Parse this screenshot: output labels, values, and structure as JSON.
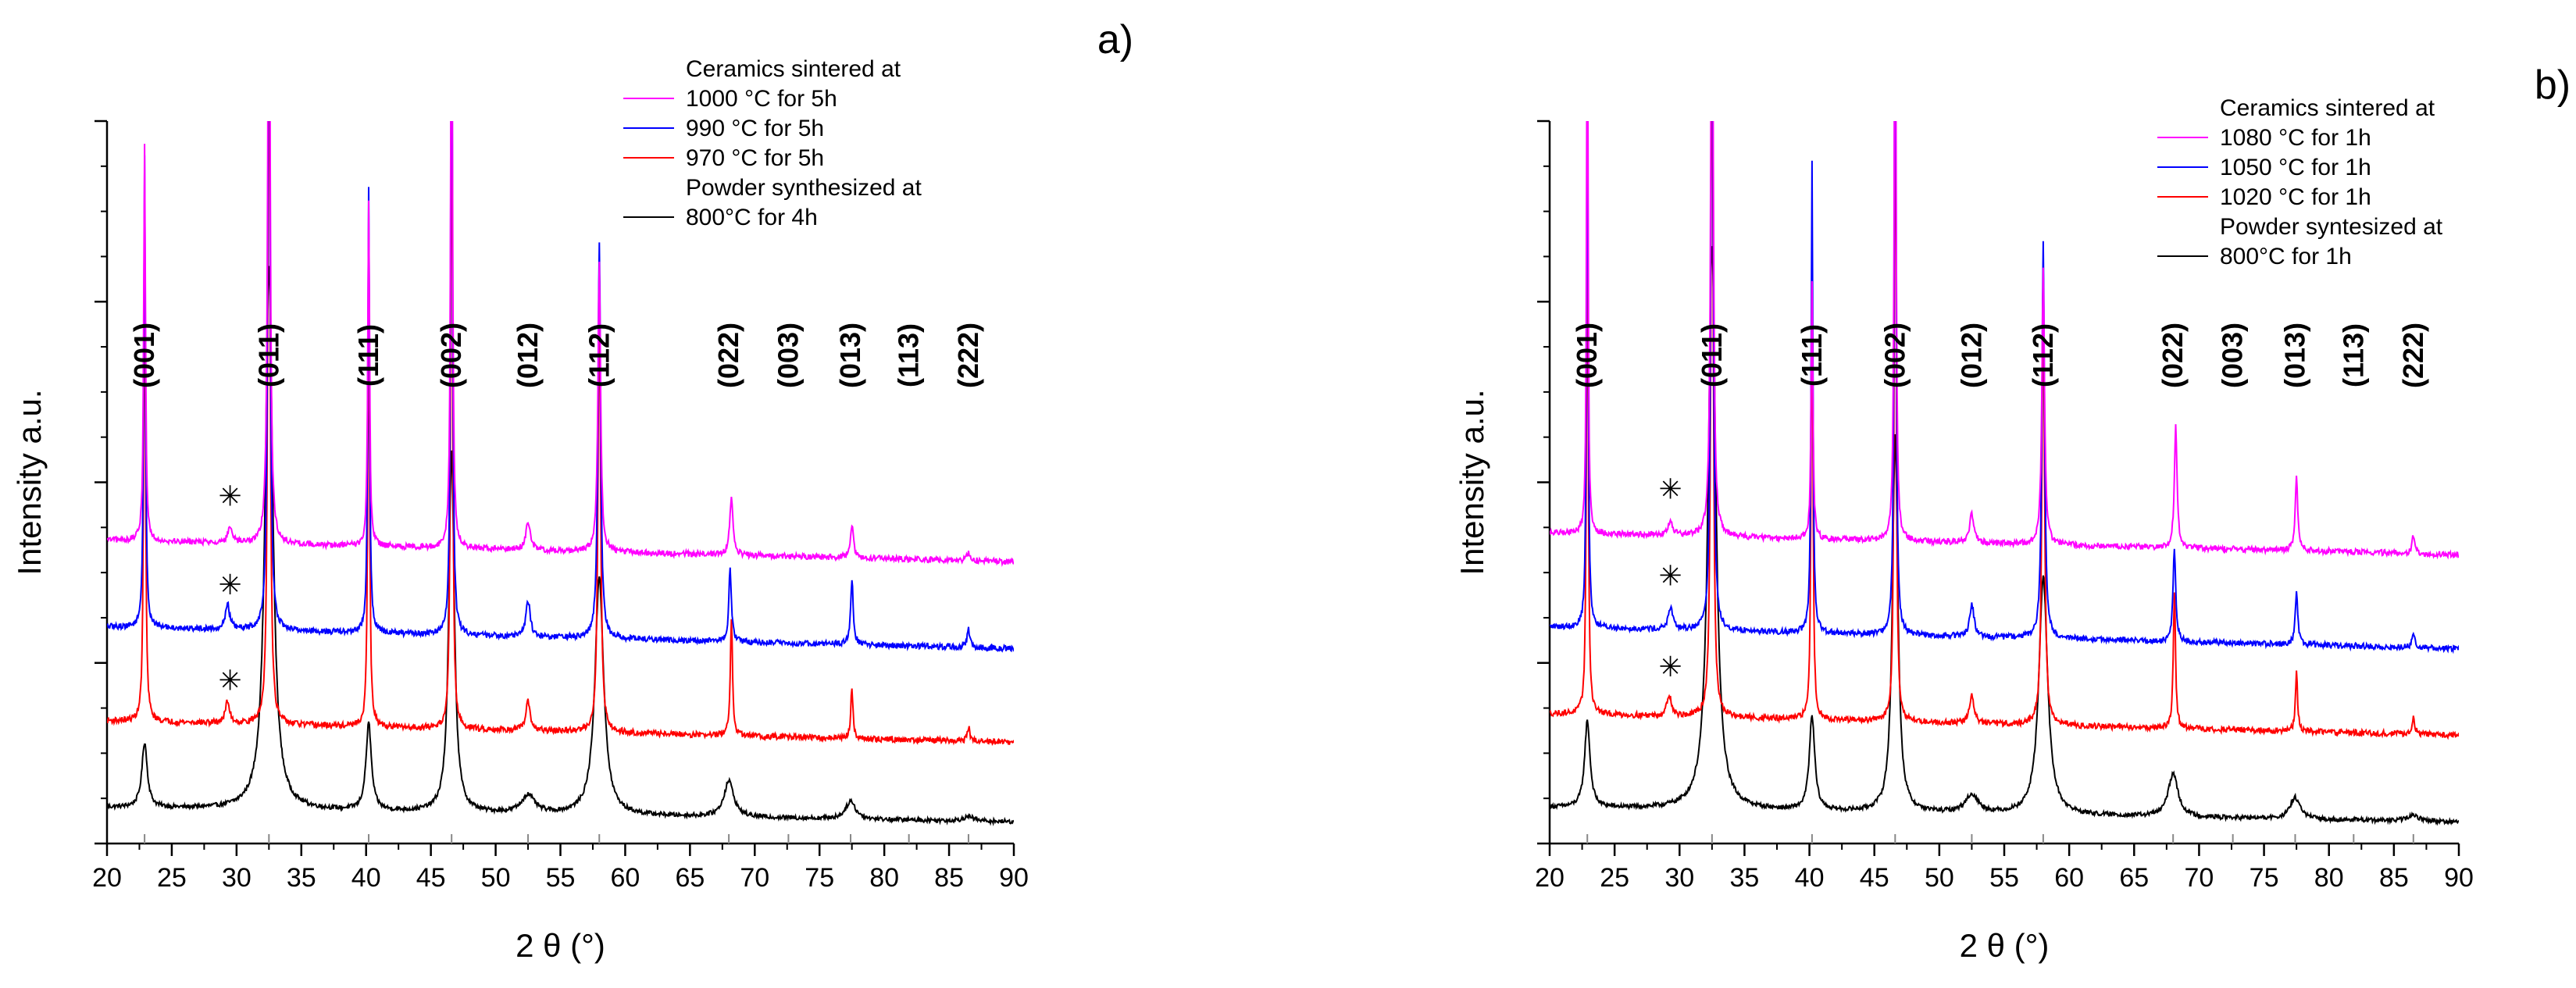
{
  "colors": {
    "s1000": "#ff00ff",
    "s990": "#0000ff",
    "s970": "#ff0000",
    "powder": "#000000"
  },
  "chart_data": [
    {
      "panel_label": "a)",
      "type": "line",
      "xlabel": "2 θ (°)",
      "ylabel": "Intensity a.u.",
      "xlim": [
        20,
        90
      ],
      "x_ticks": [
        "20",
        "25",
        "30",
        "35",
        "40",
        "45",
        "50",
        "55",
        "60",
        "65",
        "70",
        "75",
        "80",
        "85",
        "90"
      ],
      "y_axis_tick_labels": "none",
      "legend": {
        "placement": "top-right",
        "headers": [
          "Ceramics sintered at",
          "Powder synthesized at"
        ],
        "entries": [
          "1000 °C for 5h",
          "990 °C for 5h",
          "970 °C for 5h",
          "800°C for 4h"
        ]
      },
      "reflections": [
        {
          "label": "(001)",
          "x": 22.9
        },
        {
          "label": "(011)",
          "x": 32.5
        },
        {
          "label": "(111)",
          "x": 40.2
        },
        {
          "label": "(002)",
          "x": 46.6
        },
        {
          "label": "(012)",
          "x": 52.5
        },
        {
          "label": "(112)",
          "x": 58.0
        },
        {
          "label": "(022)",
          "x": 68.0
        },
        {
          "label": "(003)",
          "x": 72.6
        },
        {
          "label": "(013)",
          "x": 77.4
        },
        {
          "label": "(113)",
          "x": 81.9
        },
        {
          "label": "(222)",
          "x": 86.5
        }
      ],
      "impurity_marker": {
        "symbol": "✳",
        "x": 29.5
      },
      "series": [
        {
          "name": "1000 °C for 5h",
          "color": "#ff00ff",
          "baseline": 0.42,
          "baseline_end": 0.39,
          "noise": 0.004,
          "peaks": [
            [
              22.9,
              0.55,
              0.08
            ],
            [
              29.5,
              0.02,
              0.2
            ],
            [
              32.5,
              1.05,
              0.1
            ],
            [
              40.2,
              0.48,
              0.08
            ],
            [
              46.6,
              0.95,
              0.08
            ],
            [
              52.5,
              0.04,
              0.2
            ],
            [
              58.0,
              0.4,
              0.12
            ],
            [
              68.2,
              0.08,
              0.15
            ],
            [
              77.5,
              0.045,
              0.15
            ],
            [
              86.5,
              0.012,
              0.15
            ]
          ]
        },
        {
          "name": "990 °C for 5h",
          "color": "#0000ff",
          "baseline": 0.3,
          "baseline_end": 0.27,
          "noise": 0.004,
          "peaks": [
            [
              22.9,
              0.65,
              0.08
            ],
            [
              29.3,
              0.035,
              0.2
            ],
            [
              32.5,
              1.05,
              0.1
            ],
            [
              40.2,
              0.62,
              0.08
            ],
            [
              46.6,
              1.05,
              0.08
            ],
            [
              52.5,
              0.05,
              0.2
            ],
            [
              58.0,
              0.55,
              0.12
            ],
            [
              68.1,
              0.1,
              0.12
            ],
            [
              77.5,
              0.09,
              0.12
            ],
            [
              86.5,
              0.025,
              0.12
            ]
          ]
        },
        {
          "name": "970 °C for 5h",
          "color": "#ff0000",
          "baseline": 0.17,
          "baseline_end": 0.14,
          "noise": 0.004,
          "peaks": [
            [
              22.9,
              0.7,
              0.08
            ],
            [
              29.3,
              0.03,
              0.2
            ],
            [
              32.5,
              1.05,
              0.1
            ],
            [
              40.2,
              0.65,
              0.08
            ],
            [
              46.6,
              1.05,
              0.08
            ],
            [
              52.5,
              0.04,
              0.2
            ],
            [
              58.0,
              0.6,
              0.12
            ],
            [
              68.2,
              0.16,
              0.1
            ],
            [
              77.5,
              0.07,
              0.1
            ],
            [
              86.5,
              0.02,
              0.12
            ]
          ]
        },
        {
          "name": "800°C for 4h",
          "color": "#000000",
          "baseline": 0.05,
          "baseline_end": 0.03,
          "noise": 0.003,
          "peaks": [
            [
              22.9,
              0.09,
              0.25
            ],
            [
              32.5,
              0.75,
              0.35
            ],
            [
              40.2,
              0.12,
              0.25
            ],
            [
              46.6,
              0.5,
              0.25
            ],
            [
              52.5,
              0.025,
              0.6
            ],
            [
              58.0,
              0.33,
              0.4
            ],
            [
              68.0,
              0.05,
              0.45
            ],
            [
              77.4,
              0.025,
              0.45
            ],
            [
              86.5,
              0.006,
              0.5
            ]
          ]
        }
      ]
    },
    {
      "panel_label": "b)",
      "type": "line",
      "xlabel": "2 θ (°)",
      "ylabel": "Intensity a.u.",
      "xlim": [
        20,
        90
      ],
      "x_ticks": [
        "20",
        "25",
        "30",
        "35",
        "40",
        "45",
        "50",
        "55",
        "60",
        "65",
        "70",
        "75",
        "80",
        "85",
        "90"
      ],
      "y_axis_tick_labels": "none",
      "legend": {
        "placement": "top-right",
        "headers": [
          "Ceramics sintered at",
          "Powder syntesized at"
        ],
        "entries": [
          "1080 °C for 1h",
          "1050 °C for 1h",
          "1020 °C for 1h",
          "800°C for 1h"
        ]
      },
      "reflections": [
        {
          "label": "(001)",
          "x": 22.9
        },
        {
          "label": "(011)",
          "x": 32.5
        },
        {
          "label": "(111)",
          "x": 40.2
        },
        {
          "label": "(002)",
          "x": 46.6
        },
        {
          "label": "(012)",
          "x": 52.5
        },
        {
          "label": "(112)",
          "x": 58.0
        },
        {
          "label": "(022)",
          "x": 68.0
        },
        {
          "label": "(003)",
          "x": 72.6
        },
        {
          "label": "(013)",
          "x": 77.4
        },
        {
          "label": "(113)",
          "x": 81.9
        },
        {
          "label": "(222)",
          "x": 86.5
        }
      ],
      "impurity_marker": {
        "symbol": "✳",
        "x": 29.3
      },
      "series": [
        {
          "name": "1080 °C for 1h",
          "color": "#ff00ff",
          "baseline": 0.43,
          "baseline_end": 0.4,
          "noise": 0.004,
          "peaks": [
            [
              22.9,
              0.94,
              0.06
            ],
            [
              29.3,
              0.02,
              0.2
            ],
            [
              32.5,
              1.05,
              0.1
            ],
            [
              40.2,
              0.36,
              0.08
            ],
            [
              46.6,
              0.95,
              0.08
            ],
            [
              52.5,
              0.04,
              0.2
            ],
            [
              58.0,
              0.38,
              0.12
            ],
            [
              68.2,
              0.17,
              0.12
            ],
            [
              77.5,
              0.1,
              0.12
            ],
            [
              86.5,
              0.025,
              0.12
            ]
          ]
        },
        {
          "name": "1050 °C for 1h",
          "color": "#0000ff",
          "baseline": 0.3,
          "baseline_end": 0.27,
          "noise": 0.004,
          "peaks": [
            [
              22.9,
              0.85,
              0.07
            ],
            [
              29.3,
              0.03,
              0.2
            ],
            [
              32.5,
              1.05,
              0.1
            ],
            [
              40.2,
              0.65,
              0.08
            ],
            [
              46.6,
              1.05,
              0.08
            ],
            [
              52.5,
              0.045,
              0.2
            ],
            [
              58.0,
              0.55,
              0.12
            ],
            [
              68.1,
              0.13,
              0.12
            ],
            [
              77.5,
              0.07,
              0.12
            ],
            [
              86.5,
              0.02,
              0.12
            ]
          ]
        },
        {
          "name": "1020 °C for 1h",
          "color": "#ff0000",
          "baseline": 0.18,
          "baseline_end": 0.15,
          "noise": 0.004,
          "peaks": [
            [
              22.9,
              0.7,
              0.08
            ],
            [
              29.2,
              0.03,
              0.2
            ],
            [
              32.5,
              1.05,
              0.1
            ],
            [
              40.2,
              0.66,
              0.08
            ],
            [
              46.6,
              1.05,
              0.08
            ],
            [
              52.5,
              0.04,
              0.2
            ],
            [
              58.0,
              0.6,
              0.12
            ],
            [
              68.1,
              0.19,
              0.1
            ],
            [
              77.5,
              0.08,
              0.1
            ],
            [
              86.5,
              0.025,
              0.12
            ]
          ]
        },
        {
          "name": "800°C for 1h",
          "color": "#000000",
          "baseline": 0.05,
          "baseline_end": 0.03,
          "noise": 0.003,
          "peaks": [
            [
              22.9,
              0.12,
              0.25
            ],
            [
              32.5,
              0.78,
              0.35
            ],
            [
              40.2,
              0.13,
              0.25
            ],
            [
              46.6,
              0.52,
              0.25
            ],
            [
              52.5,
              0.025,
              0.6
            ],
            [
              58.0,
              0.33,
              0.4
            ],
            [
              68.0,
              0.06,
              0.45
            ],
            [
              77.4,
              0.03,
              0.45
            ],
            [
              86.5,
              0.008,
              0.5
            ]
          ]
        }
      ]
    }
  ]
}
